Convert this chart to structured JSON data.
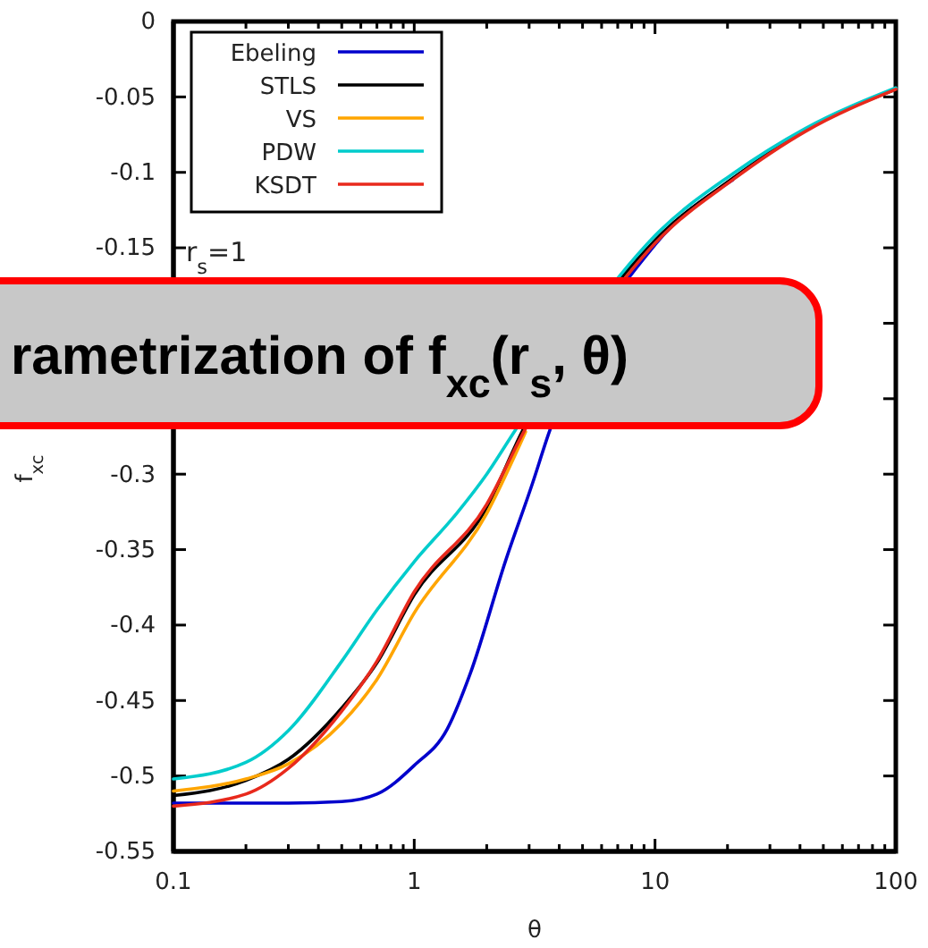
{
  "chart_data": {
    "type": "line",
    "xlabel": "θ",
    "ylabel": "f$_{xc}$",
    "log": "x",
    "xlim": [
      0.1,
      100
    ],
    "ylim": [
      -0.55,
      0
    ],
    "xticks": [
      0.1,
      {
        "value": 0.2,
        "label": null
      },
      {
        "value": 0.3,
        "label": null
      },
      {
        "value": 0.4,
        "label": null
      },
      {
        "value": 0.5,
        "label": null
      },
      {
        "value": 0.6,
        "label": null
      },
      {
        "value": 0.7,
        "label": null
      },
      {
        "value": 0.8,
        "label": null
      },
      {
        "value": 0.9,
        "label": null
      },
      1,
      {
        "value": 2,
        "label": null
      },
      {
        "value": 3,
        "label": null
      },
      {
        "value": 4,
        "label": null
      },
      {
        "value": 5,
        "label": null
      },
      {
        "value": 6,
        "label": null
      },
      {
        "value": 7,
        "label": null
      },
      {
        "value": 8,
        "label": null
      },
      {
        "value": 9,
        "label": null
      },
      10,
      {
        "value": 20,
        "label": null
      },
      {
        "value": 30,
        "label": null
      },
      {
        "value": 40,
        "label": null
      },
      {
        "value": 50,
        "label": null
      },
      {
        "value": 60,
        "label": null
      },
      {
        "value": 70,
        "label": null
      },
      {
        "value": 80,
        "label": null
      },
      {
        "value": 90,
        "label": null
      },
      100
    ],
    "yticks": [
      0,
      -0.05,
      -0.1,
      -0.15,
      {
        "value": -0.2,
        "label": null
      },
      {
        "value": -0.25,
        "label": null
      },
      -0.3,
      -0.35,
      -0.4,
      -0.45,
      -0.5,
      -0.55
    ],
    "legend": "top left",
    "grid": false,
    "line_style": "solid",
    "marker": "none",
    "annotations": [
      "r$_{s}$=1",
      "rametrization of f$_{xc}$(r$_{s}$, θ)"
    ],
    "series": [
      {
        "name": "Ebeling",
        "color": "#0000cc",
        "x": [
          0.1,
          0.3,
          0.5,
          0.7,
          1,
          1.37,
          1.71,
          2.4,
          3.1,
          3.6,
          10,
          21
        ],
        "values": [
          -0.518,
          -0.518,
          -0.517,
          -0.512,
          -0.493,
          -0.469,
          -0.432,
          -0.357,
          -0.306,
          -0.274,
          -0.148,
          -0.105
        ]
      },
      {
        "name": "STLS",
        "color": "#000000",
        "x": [
          0.1,
          0.2,
          0.3,
          0.5,
          0.7,
          1,
          2,
          2.8,
          10,
          21,
          42,
          100
        ],
        "values": [
          -0.513,
          -0.503,
          -0.489,
          -0.455,
          -0.425,
          -0.38,
          -0.322,
          -0.272,
          -0.145,
          -0.104,
          -0.072,
          -0.045
        ]
      },
      {
        "name": "VS",
        "color": "#ffa500",
        "x": [
          0.1,
          0.2,
          0.3,
          0.5,
          0.7,
          1,
          2,
          2.9
        ],
        "values": [
          -0.51,
          -0.502,
          -0.492,
          -0.465,
          -0.436,
          -0.392,
          -0.326,
          -0.272
        ]
      },
      {
        "name": "PDW",
        "color": "#00cccc",
        "x": [
          0.1,
          0.2,
          0.3,
          0.5,
          0.7,
          1,
          1.5,
          2,
          2.6,
          7.1,
          10,
          21,
          42,
          100
        ],
        "values": [
          -0.502,
          -0.491,
          -0.47,
          -0.424,
          -0.39,
          -0.358,
          -0.326,
          -0.3,
          -0.272,
          -0.169,
          -0.142,
          -0.101,
          -0.071,
          -0.044
        ]
      },
      {
        "name": "KSDT",
        "color": "#e8291c",
        "x": [
          0.1,
          0.2,
          0.3,
          0.5,
          0.7,
          1,
          2,
          2.85,
          7.6,
          10,
          21,
          42,
          100
        ],
        "values": [
          -0.52,
          -0.512,
          -0.495,
          -0.457,
          -0.424,
          -0.378,
          -0.32,
          -0.272,
          -0.169,
          -0.147,
          -0.105,
          -0.073,
          -0.045
        ]
      }
    ]
  }
}
